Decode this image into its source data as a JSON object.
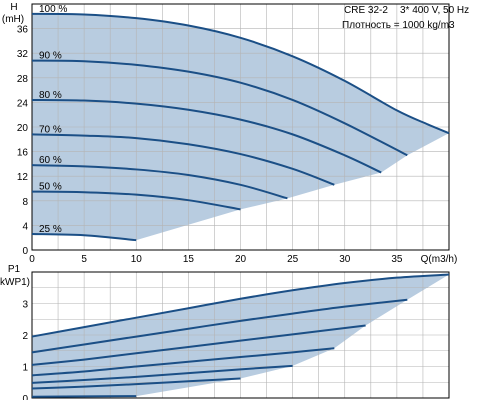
{
  "header": {
    "pump": "CRE 32-2",
    "supply": "3* 400 V, 50 Hz",
    "density": "Плотность = 1000 kg/m3"
  },
  "colors": {
    "background": "#ffffff",
    "fill": "#b8cce0",
    "curve": "#1b4f86",
    "grid": "#b4b4b4",
    "axis": "#000000"
  },
  "chart_data": [
    {
      "type": "line",
      "panel": "head",
      "ylabel": "H",
      "ylabel_unit": "(mH)",
      "xlabel": "Q(m3/h)",
      "xlim": [
        0,
        40
      ],
      "ylim": [
        0,
        40
      ],
      "xticks": [
        0,
        5,
        10,
        15,
        20,
        25,
        30,
        35
      ],
      "yticks": [
        0,
        4,
        8,
        12,
        16,
        20,
        24,
        28,
        32,
        36
      ],
      "grid": true,
      "fill": "operating-range",
      "series": [
        {
          "name": "100 %",
          "x": [
            0,
            5,
            10,
            15,
            20,
            25,
            30,
            35,
            38,
            40
          ],
          "y": [
            38.4,
            38.3,
            37.7,
            36.5,
            34.5,
            31.5,
            27.5,
            22.7,
            20.4,
            19.0
          ]
        },
        {
          "name": "90 %",
          "x": [
            0,
            5,
            10,
            15,
            20,
            25,
            30,
            36
          ],
          "y": [
            30.8,
            30.7,
            30.1,
            29.0,
            27.2,
            24.4,
            20.6,
            15.4
          ]
        },
        {
          "name": "80 %",
          "x": [
            0,
            5,
            10,
            15,
            20,
            25,
            30,
            33.5
          ],
          "y": [
            24.4,
            24.3,
            23.8,
            22.8,
            21.2,
            18.8,
            15.4,
            12.6
          ]
        },
        {
          "name": "70 %",
          "x": [
            0,
            5,
            10,
            15,
            20,
            25,
            29
          ],
          "y": [
            18.8,
            18.6,
            18.2,
            17.2,
            15.6,
            13.2,
            10.6
          ]
        },
        {
          "name": "60 %",
          "x": [
            0,
            5,
            10,
            15,
            20,
            24.5
          ],
          "y": [
            13.8,
            13.6,
            13.1,
            12.2,
            10.6,
            8.4
          ]
        },
        {
          "name": "50 %",
          "x": [
            0,
            5,
            10,
            15,
            20
          ],
          "y": [
            9.5,
            9.4,
            9.0,
            8.1,
            6.6
          ]
        },
        {
          "name": "25 %",
          "x": [
            0,
            5,
            10
          ],
          "y": [
            2.6,
            2.4,
            1.6
          ]
        }
      ]
    },
    {
      "type": "line",
      "panel": "power",
      "ylabel": "P1",
      "ylabel_unit": "(kW)",
      "ylabel_printed": "kWP1)",
      "xlim": [
        0,
        40
      ],
      "ylim": [
        0,
        4
      ],
      "xticks": [
        0,
        5,
        10,
        15,
        20,
        25,
        30,
        35
      ],
      "yticks": [
        0,
        1,
        2,
        3
      ],
      "grid": true,
      "fill": "operating-range",
      "series": [
        {
          "name": "100 %",
          "x": [
            0,
            5,
            10,
            15,
            20,
            25,
            30,
            35,
            40
          ],
          "y": [
            1.95,
            2.25,
            2.55,
            2.85,
            3.15,
            3.42,
            3.65,
            3.82,
            3.92
          ]
        },
        {
          "name": "90 %",
          "x": [
            0,
            5,
            10,
            15,
            20,
            25,
            30,
            36
          ],
          "y": [
            1.45,
            1.7,
            1.95,
            2.2,
            2.45,
            2.68,
            2.9,
            3.12
          ]
        },
        {
          "name": "80 %",
          "x": [
            0,
            5,
            10,
            15,
            20,
            25,
            32
          ],
          "y": [
            1.05,
            1.22,
            1.42,
            1.62,
            1.82,
            2.02,
            2.3
          ]
        },
        {
          "name": "70 %",
          "x": [
            0,
            5,
            10,
            15,
            20,
            25,
            29
          ],
          "y": [
            0.72,
            0.84,
            1.0,
            1.15,
            1.3,
            1.45,
            1.58
          ]
        },
        {
          "name": "60 %",
          "x": [
            0,
            5,
            10,
            15,
            20,
            25
          ],
          "y": [
            0.48,
            0.57,
            0.67,
            0.79,
            0.91,
            1.02
          ]
        },
        {
          "name": "50 %",
          "x": [
            0,
            5,
            10,
            15,
            20
          ],
          "y": [
            0.3,
            0.36,
            0.44,
            0.53,
            0.62
          ]
        },
        {
          "name": "25 %",
          "x": [
            0,
            5,
            10
          ],
          "y": [
            0.04,
            0.05,
            0.06
          ]
        }
      ]
    }
  ]
}
